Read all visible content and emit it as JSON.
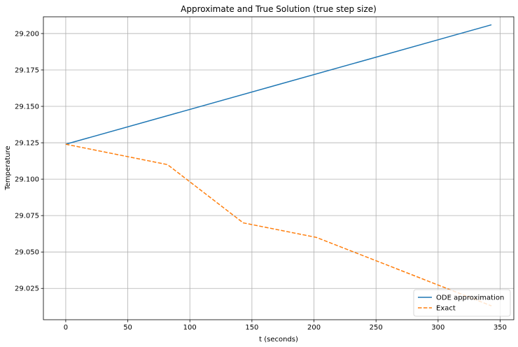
{
  "chart_data": {
    "type": "line",
    "title": "Approximate and True Solution (true step size)",
    "xlabel": "t (seconds)",
    "ylabel": "Temperature",
    "xlim": [
      -18,
      361
    ],
    "ylim": [
      29.0035,
      29.2115
    ],
    "xticks": [
      0,
      50,
      100,
      150,
      200,
      250,
      300,
      350
    ],
    "xtick_labels": [
      "0",
      "50",
      "100",
      "150",
      "200",
      "250",
      "300",
      "350"
    ],
    "yticks": [
      29.025,
      29.05,
      29.075,
      29.1,
      29.125,
      29.15,
      29.175,
      29.2
    ],
    "ytick_labels": [
      "29.025",
      "29.050",
      "29.075",
      "29.100",
      "29.125",
      "29.150",
      "29.175",
      "29.200"
    ],
    "grid": true,
    "legend_position": "lower-right",
    "series": [
      {
        "name": "ODE approximation",
        "color": "#1f77b4",
        "style": "solid",
        "x": [
          0,
          343
        ],
        "y": [
          29.124,
          29.206
        ]
      },
      {
        "name": "Exact",
        "color": "#ff7f0e",
        "style": "dashed",
        "x": [
          0,
          82,
          143,
          202,
          343
        ],
        "y": [
          29.124,
          29.11,
          29.07,
          29.06,
          29.013
        ]
      }
    ]
  }
}
